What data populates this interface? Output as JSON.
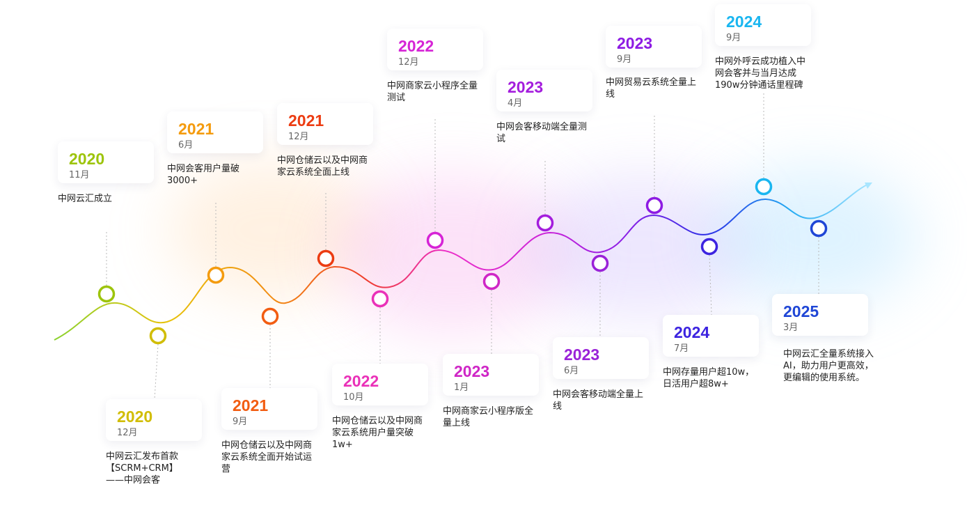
{
  "timeline": {
    "events": [
      {
        "year": "2020",
        "month": "11月",
        "desc": "中网云汇成立",
        "color": "#9dc40c"
      },
      {
        "year": "2020",
        "month": "12月",
        "desc": "中网云汇发布首款\n【SCRM+CRM】\n——中网会客",
        "color": "#d1bd05"
      },
      {
        "year": "2021",
        "month": "6月",
        "desc": "中网会客用户量破\n3000+",
        "color": "#f49b0e"
      },
      {
        "year": "2021",
        "month": "9月",
        "desc": "中网仓储云以及中网商\n家云系统全面开始试运\n营",
        "color": "#f25d12"
      },
      {
        "year": "2021",
        "month": "12月",
        "desc": "中网仓储云以及中网商\n家云系统全面上线",
        "color": "#ec3c12"
      },
      {
        "year": "2022",
        "month": "10月",
        "desc": "中网仓储云以及中网商\n家云系统用户量突破\n1w+",
        "color": "#ea31b8"
      },
      {
        "year": "2022",
        "month": "12月",
        "desc": "中网商家云小程序全量\n测试",
        "color": "#d624d6"
      },
      {
        "year": "2023",
        "month": "1月",
        "desc": "中网商家云小程序版全\n量上线",
        "color": "#cf26c6"
      },
      {
        "year": "2023",
        "month": "4月",
        "desc": "中网会客移动端全量测\n试",
        "color": "#a41ddd"
      },
      {
        "year": "2023",
        "month": "6月",
        "desc": "中网会客移动端全量上\n线",
        "color": "#9a22d8"
      },
      {
        "year": "2023",
        "month": "9月",
        "desc": "中网贸易云系统全量上\n线",
        "color": "#8d1be3"
      },
      {
        "year": "2024",
        "month": "7月",
        "desc": "中网存量用户超10w，\n日活用户超8w+",
        "color": "#3c23e0"
      },
      {
        "year": "2024",
        "month": "9月",
        "desc": "中网外呼云成功植入中\n网会客并与当月达成\n190w分钟通话里程碑",
        "color": "#1ab6f0"
      },
      {
        "year": "2025",
        "month": "3月",
        "desc": "中网云汇全量系统接入\nAI，助力用户更高效，\n更编辑的使用系统。",
        "color": "#1f46d6"
      }
    ]
  }
}
